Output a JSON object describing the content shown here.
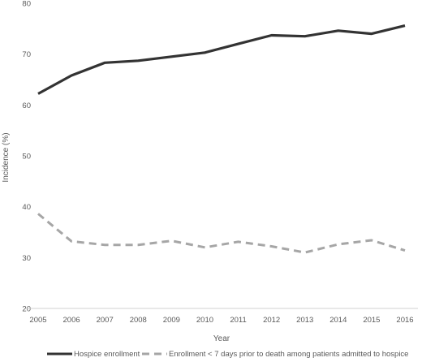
{
  "chart_data": {
    "type": "line",
    "xlabel": "Year",
    "ylabel": "Incidence (%)",
    "ylim": [
      20,
      80
    ],
    "yticks": [
      20,
      30,
      40,
      50,
      60,
      70,
      80
    ],
    "categories": [
      "2005",
      "2006",
      "2007",
      "2008",
      "2009",
      "2010",
      "2011",
      "2012",
      "2013",
      "2014",
      "2015",
      "2016"
    ],
    "grid": false,
    "legend_position": "bottom",
    "series": [
      {
        "name": "Hospice enrollment",
        "values": [
          62.2,
          65.8,
          68.3,
          68.7,
          69.5,
          70.3,
          72.0,
          73.7,
          73.5,
          74.6,
          74.0,
          75.6
        ],
        "color": "#333333",
        "style": "solid"
      },
      {
        "name": "Enrollment < 7 days prior to death among patients admitted to hospice",
        "values": [
          38.6,
          33.2,
          32.5,
          32.5,
          33.3,
          32.0,
          33.1,
          32.2,
          31.0,
          32.6,
          33.4,
          31.4
        ],
        "color": "#a6a6a6",
        "style": "dashed"
      }
    ]
  }
}
